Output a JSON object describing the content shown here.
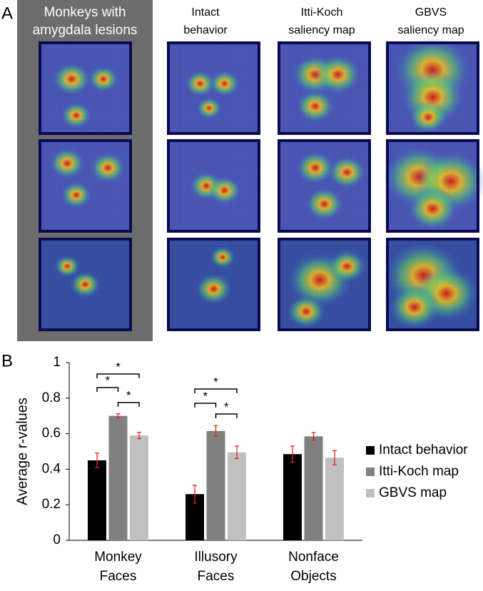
{
  "panel_a": {
    "label": "A",
    "columns": [
      [
        "Monkeys with",
        "amygdala lesions"
      ],
      [
        "Intact",
        "behavior"
      ],
      [
        "Itti-Koch",
        "saliency map"
      ],
      [
        "GBVS",
        "saliency map"
      ]
    ]
  },
  "panel_b_label": "B",
  "chart_data": {
    "type": "bar",
    "y_label": "Average r-values",
    "categories": [
      [
        "Monkey",
        "Faces"
      ],
      [
        "Illusory",
        "Faces"
      ],
      [
        "Nonface",
        "Objects"
      ]
    ],
    "series": [
      {
        "name": "Intact behavior",
        "color": "#000000",
        "values": [
          0.45,
          0.26,
          0.485
        ],
        "errors": [
          0.04,
          0.05,
          0.045
        ]
      },
      {
        "name": "Itti-Koch map",
        "color": "#808080",
        "values": [
          0.7,
          0.615,
          0.585
        ],
        "errors": [
          0.012,
          0.03,
          0.022
        ]
      },
      {
        "name": "GBVS map",
        "color": "#c0c0c0",
        "values": [
          0.59,
          0.495,
          0.465
        ],
        "errors": [
          0.018,
          0.035,
          0.04
        ]
      }
    ],
    "error_color": "#e0261b",
    "significance_label": "*",
    "ylim": [
      0,
      1
    ],
    "yticks": [
      0,
      0.2,
      0.4,
      0.6,
      0.8,
      1
    ],
    "legend": "right"
  }
}
